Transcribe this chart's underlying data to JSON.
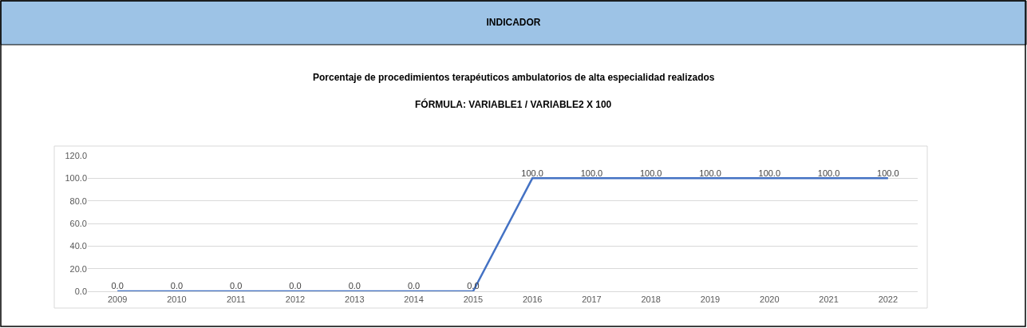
{
  "chart_data": {
    "type": "line",
    "title": "INDICADOR",
    "subtitle": "Porcentaje de procedimientos terapéuticos ambulatorios de alta especialidad realizados",
    "annotations": [
      "FÓRMULA: VARIABLE1 / VARIABLE2 X 100"
    ],
    "categories": [
      "2009",
      "2010",
      "2011",
      "2012",
      "2013",
      "2014",
      "2015",
      "2016",
      "2017",
      "2018",
      "2019",
      "2020",
      "2021",
      "2022"
    ],
    "series": [
      {
        "color": "#4472c4",
        "values": [
          0,
          0,
          0,
          0,
          0,
          0,
          0,
          100,
          100,
          100,
          100,
          100,
          100,
          100
        ],
        "value_labels": [
          "0.0",
          "0.0",
          "0.0",
          "0.0",
          "0.0",
          "0.0",
          "0.0",
          "100.0",
          "100.0",
          "100.0",
          "100.0",
          "100.0",
          "100.0",
          "100.0"
        ]
      }
    ],
    "ylim": [
      0,
      120
    ],
    "yticks": [
      {
        "value": 0,
        "label": "0.0"
      },
      {
        "value": 20,
        "label": "20.0"
      },
      {
        "value": 40,
        "label": "40.0"
      },
      {
        "value": 60,
        "label": "60.0"
      },
      {
        "value": 80,
        "label": "80.0"
      },
      {
        "value": 100,
        "label": "100.0"
      },
      {
        "value": 120,
        "label": "120.0"
      }
    ],
    "grid": "y",
    "marker": "none",
    "line_style": "solid"
  }
}
